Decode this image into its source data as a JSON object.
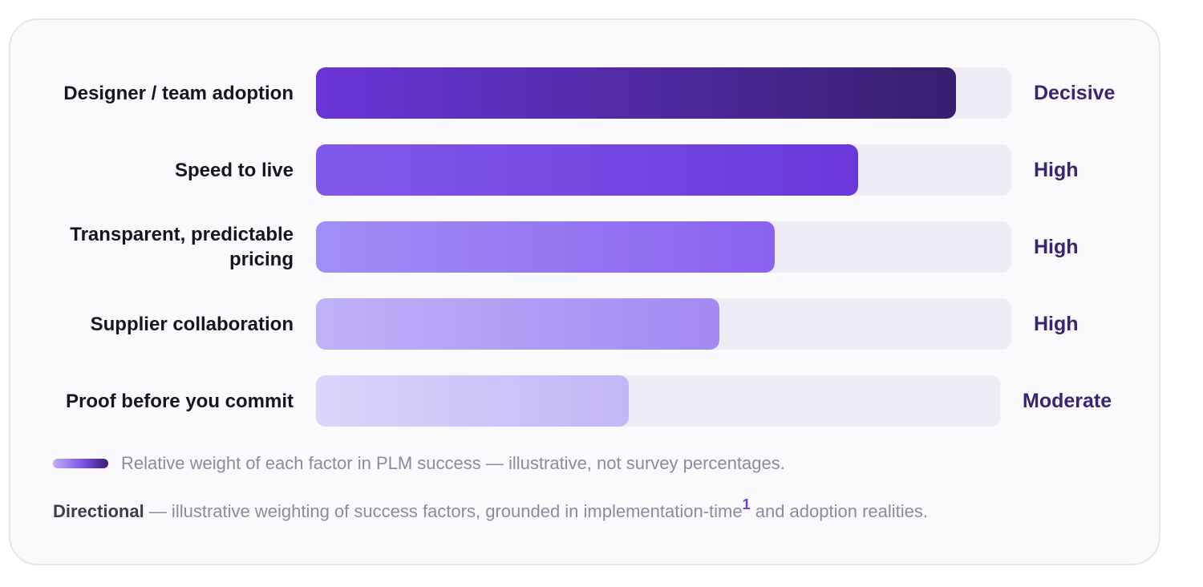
{
  "chart_data": {
    "type": "bar",
    "orientation": "horizontal",
    "categories": [
      "Designer / team adoption",
      "Speed to live",
      "Transparent, predictable pricing",
      "Supplier collaboration",
      "Proof before you commit"
    ],
    "series": [
      {
        "values": [
          0.92,
          0.78,
          0.66,
          0.58,
          0.45
        ]
      }
    ],
    "level_labels": [
      "Decisive",
      "High",
      "High",
      "High",
      "Moderate"
    ],
    "xlim": [
      0,
      1
    ],
    "grid": false,
    "legend_text": "Relative weight of each factor in PLM success — illustrative, not survey percentages.",
    "colors": {
      "bar_gradients": [
        [
          "#6a35d8",
          "#371f6d"
        ],
        [
          "#8159ea",
          "#6b38db"
        ],
        [
          "#a18ef5",
          "#8a62ee"
        ],
        [
          "#c0b2f7",
          "#a289f2"
        ],
        [
          "#dbd4fb",
          "#c3b6f6"
        ]
      ],
      "track": "#eeebf5",
      "level_text": "#3a2470"
    }
  },
  "footnote": {
    "bold": "Directional",
    "text_before": " — illustrative weighting of success factors, grounded in implementation-time",
    "superscript": "1",
    "text_after": " and adoption realities."
  }
}
